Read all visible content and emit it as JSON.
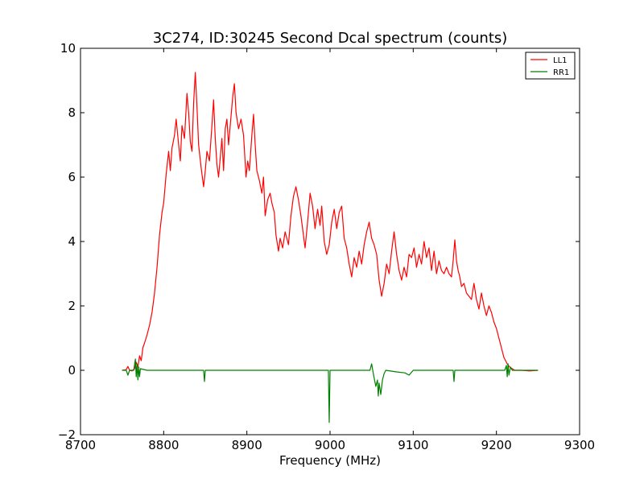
{
  "chart_data": {
    "type": "line",
    "title": "3C274, ID:30245 Second Dcal spectrum (counts)",
    "xlabel": "Frequency (MHz)",
    "ylabel": "",
    "xlim": [
      8700,
      9300
    ],
    "ylim": [
      -2,
      10
    ],
    "x_ticks": [
      8700,
      8800,
      8900,
      9000,
      9100,
      9200,
      9300
    ],
    "y_ticks": [
      -2,
      0,
      2,
      4,
      6,
      8,
      10
    ],
    "grid": false,
    "legend_position": "top-right",
    "series": [
      {
        "name": "LL1",
        "color": "#ff0000",
        "points": [
          [
            8750,
            0.0
          ],
          [
            8755,
            0.02
          ],
          [
            8757,
            0.12
          ],
          [
            8759,
            0.0
          ],
          [
            8762,
            -0.02
          ],
          [
            8765,
            0.05
          ],
          [
            8767,
            0.25
          ],
          [
            8769,
            0.1
          ],
          [
            8771,
            0.45
          ],
          [
            8773,
            0.3
          ],
          [
            8775,
            0.7
          ],
          [
            8777,
            0.85
          ],
          [
            8780,
            1.1
          ],
          [
            8783,
            1.4
          ],
          [
            8786,
            1.8
          ],
          [
            8789,
            2.4
          ],
          [
            8792,
            3.2
          ],
          [
            8795,
            4.2
          ],
          [
            8798,
            4.9
          ],
          [
            8800,
            5.2
          ],
          [
            8803,
            6.1
          ],
          [
            8806,
            6.8
          ],
          [
            8808,
            6.2
          ],
          [
            8810,
            6.9
          ],
          [
            8813,
            7.3
          ],
          [
            8815,
            7.8
          ],
          [
            8818,
            7.0
          ],
          [
            8820,
            6.5
          ],
          [
            8822,
            7.6
          ],
          [
            8825,
            7.2
          ],
          [
            8828,
            8.6
          ],
          [
            8830,
            8.0
          ],
          [
            8832,
            7.1
          ],
          [
            8834,
            6.8
          ],
          [
            8836,
            8.3
          ],
          [
            8838,
            9.25
          ],
          [
            8840,
            8.2
          ],
          [
            8842,
            7.0
          ],
          [
            8845,
            6.3
          ],
          [
            8848,
            5.7
          ],
          [
            8850,
            6.2
          ],
          [
            8852,
            6.8
          ],
          [
            8855,
            6.5
          ],
          [
            8858,
            7.6
          ],
          [
            8860,
            8.4
          ],
          [
            8862,
            7.2
          ],
          [
            8864,
            6.4
          ],
          [
            8866,
            6.0
          ],
          [
            8868,
            6.6
          ],
          [
            8870,
            7.2
          ],
          [
            8872,
            6.2
          ],
          [
            8874,
            7.5
          ],
          [
            8876,
            7.8
          ],
          [
            8878,
            7.0
          ],
          [
            8880,
            7.6
          ],
          [
            8883,
            8.5
          ],
          [
            8885,
            8.9
          ],
          [
            8887,
            8.0
          ],
          [
            8890,
            7.5
          ],
          [
            8893,
            7.8
          ],
          [
            8896,
            7.3
          ],
          [
            8899,
            6.0
          ],
          [
            8901,
            6.5
          ],
          [
            8903,
            6.2
          ],
          [
            8906,
            7.3
          ],
          [
            8908,
            7.95
          ],
          [
            8910,
            7.0
          ],
          [
            8912,
            6.2
          ],
          [
            8915,
            5.9
          ],
          [
            8918,
            5.5
          ],
          [
            8920,
            6.0
          ],
          [
            8922,
            4.8
          ],
          [
            8925,
            5.3
          ],
          [
            8928,
            5.5
          ],
          [
            8930,
            5.2
          ],
          [
            8933,
            4.9
          ],
          [
            8935,
            4.2
          ],
          [
            8938,
            3.7
          ],
          [
            8940,
            4.1
          ],
          [
            8943,
            3.8
          ],
          [
            8946,
            4.3
          ],
          [
            8950,
            3.9
          ],
          [
            8953,
            4.8
          ],
          [
            8956,
            5.4
          ],
          [
            8959,
            5.7
          ],
          [
            8962,
            5.3
          ],
          [
            8965,
            4.8
          ],
          [
            8968,
            4.2
          ],
          [
            8970,
            3.8
          ],
          [
            8973,
            4.6
          ],
          [
            8976,
            5.5
          ],
          [
            8979,
            5.1
          ],
          [
            8982,
            4.4
          ],
          [
            8985,
            5.0
          ],
          [
            8988,
            4.5
          ],
          [
            8990,
            5.1
          ],
          [
            8993,
            4.0
          ],
          [
            8996,
            3.6
          ],
          [
            8999,
            3.9
          ],
          [
            9002,
            4.6
          ],
          [
            9005,
            5.0
          ],
          [
            9008,
            4.4
          ],
          [
            9011,
            4.9
          ],
          [
            9014,
            5.1
          ],
          [
            9017,
            4.1
          ],
          [
            9020,
            3.8
          ],
          [
            9023,
            3.3
          ],
          [
            9026,
            2.9
          ],
          [
            9029,
            3.5
          ],
          [
            9032,
            3.2
          ],
          [
            9035,
            3.7
          ],
          [
            9038,
            3.3
          ],
          [
            9041,
            3.9
          ],
          [
            9044,
            4.3
          ],
          [
            9047,
            4.6
          ],
          [
            9050,
            4.1
          ],
          [
            9053,
            3.9
          ],
          [
            9056,
            3.6
          ],
          [
            9059,
            2.8
          ],
          [
            9062,
            2.3
          ],
          [
            9065,
            2.7
          ],
          [
            9068,
            3.3
          ],
          [
            9071,
            3.0
          ],
          [
            9074,
            3.7
          ],
          [
            9077,
            4.3
          ],
          [
            9080,
            3.6
          ],
          [
            9083,
            3.1
          ],
          [
            9086,
            2.8
          ],
          [
            9089,
            3.2
          ],
          [
            9092,
            2.9
          ],
          [
            9095,
            3.6
          ],
          [
            9098,
            3.5
          ],
          [
            9101,
            3.8
          ],
          [
            9104,
            3.2
          ],
          [
            9107,
            3.6
          ],
          [
            9110,
            3.3
          ],
          [
            9113,
            4.0
          ],
          [
            9116,
            3.5
          ],
          [
            9119,
            3.8
          ],
          [
            9122,
            3.1
          ],
          [
            9125,
            3.7
          ],
          [
            9128,
            3.0
          ],
          [
            9131,
            3.4
          ],
          [
            9134,
            3.1
          ],
          [
            9137,
            3.0
          ],
          [
            9140,
            3.2
          ],
          [
            9143,
            3.0
          ],
          [
            9146,
            2.9
          ],
          [
            9148,
            3.4
          ],
          [
            9150,
            4.05
          ],
          [
            9152,
            3.4
          ],
          [
            9154,
            3.1
          ],
          [
            9156,
            2.9
          ],
          [
            9158,
            2.6
          ],
          [
            9161,
            2.7
          ],
          [
            9164,
            2.4
          ],
          [
            9167,
            2.3
          ],
          [
            9170,
            2.2
          ],
          [
            9173,
            2.7
          ],
          [
            9176,
            2.2
          ],
          [
            9179,
            1.9
          ],
          [
            9182,
            2.4
          ],
          [
            9185,
            2.0
          ],
          [
            9188,
            1.7
          ],
          [
            9191,
            2.0
          ],
          [
            9194,
            1.8
          ],
          [
            9197,
            1.5
          ],
          [
            9200,
            1.3
          ],
          [
            9203,
            1.0
          ],
          [
            9206,
            0.7
          ],
          [
            9209,
            0.4
          ],
          [
            9211,
            0.3
          ],
          [
            9213,
            0.2
          ],
          [
            9216,
            0.1
          ],
          [
            9219,
            0.05
          ],
          [
            9222,
            0.0
          ],
          [
            9230,
            0.0
          ],
          [
            9240,
            -0.02
          ],
          [
            9250,
            0.0
          ]
        ]
      },
      {
        "name": "RR1",
        "color": "#008000",
        "points": [
          [
            8750,
            0.0
          ],
          [
            8755,
            0.0
          ],
          [
            8757,
            -0.15
          ],
          [
            8759,
            0.0
          ],
          [
            8764,
            0.0
          ],
          [
            8766,
            0.35
          ],
          [
            8767,
            -0.2
          ],
          [
            8768,
            0.2
          ],
          [
            8769,
            -0.3
          ],
          [
            8770,
            0.1
          ],
          [
            8771,
            -0.2
          ],
          [
            8772,
            0.05
          ],
          [
            8780,
            0.0
          ],
          [
            8800,
            0.0
          ],
          [
            8820,
            0.0
          ],
          [
            8848,
            0.0
          ],
          [
            8849,
            -0.35
          ],
          [
            8850,
            0.0
          ],
          [
            8900,
            0.0
          ],
          [
            8950,
            0.0
          ],
          [
            8998,
            0.0
          ],
          [
            8999,
            -1.62
          ],
          [
            9000,
            0.0
          ],
          [
            9048,
            0.0
          ],
          [
            9050,
            0.2
          ],
          [
            9052,
            -0.1
          ],
          [
            9055,
            -0.5
          ],
          [
            9057,
            -0.3
          ],
          [
            9058,
            -0.8
          ],
          [
            9059,
            -0.4
          ],
          [
            9061,
            -0.75
          ],
          [
            9063,
            -0.3
          ],
          [
            9065,
            -0.1
          ],
          [
            9067,
            0.0
          ],
          [
            9080,
            -0.05
          ],
          [
            9090,
            -0.08
          ],
          [
            9095,
            -0.15
          ],
          [
            9100,
            0.0
          ],
          [
            9148,
            0.0
          ],
          [
            9149,
            -0.35
          ],
          [
            9150,
            0.0
          ],
          [
            9200,
            0.0
          ],
          [
            9210,
            0.0
          ],
          [
            9212,
            0.15
          ],
          [
            9213,
            -0.2
          ],
          [
            9214,
            0.2
          ],
          [
            9215,
            -0.15
          ],
          [
            9217,
            0.1
          ],
          [
            9219,
            0.0
          ],
          [
            9250,
            0.0
          ]
        ]
      }
    ]
  }
}
